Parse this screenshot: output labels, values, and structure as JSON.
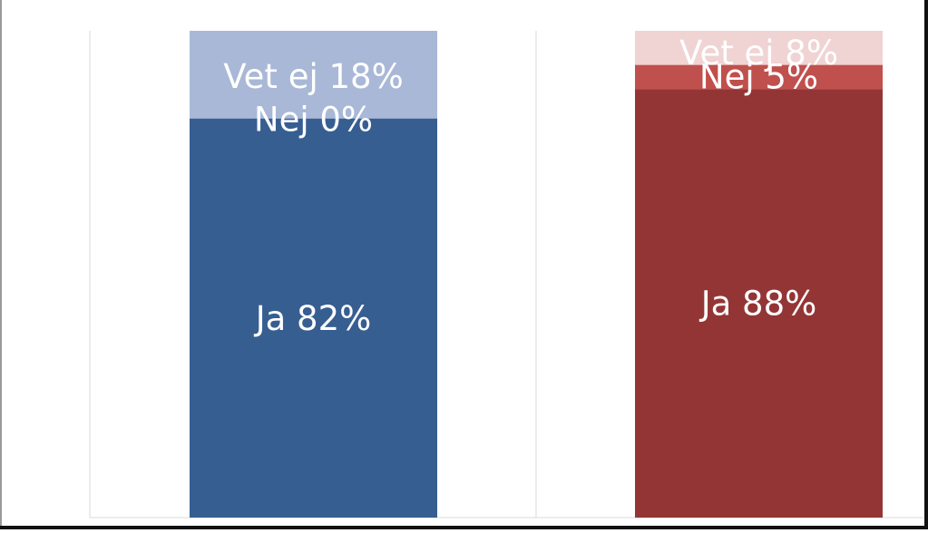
{
  "chart_data": {
    "type": "bar",
    "stacked": true,
    "percent": true,
    "ylim": [
      0,
      100
    ],
    "grid": "vertical",
    "legend": "none",
    "categories": [
      "",
      ""
    ],
    "bars": [
      {
        "segments": [
          {
            "name": "Ja",
            "value": 82,
            "label": "Ja 82%",
            "color": "#375e91"
          },
          {
            "name": "Nej",
            "value": 0,
            "label": "Nej 0%",
            "color": "#2b4f80"
          },
          {
            "name": "Vet ej",
            "value": 18,
            "label": "Vet ej 18%",
            "color": "#a9b8d6"
          }
        ]
      },
      {
        "segments": [
          {
            "name": "Ja",
            "value": 88,
            "label": "Ja 88%",
            "color": "#943535"
          },
          {
            "name": "Nej",
            "value": 5,
            "label": "Nej 5%",
            "color": "#c0504d"
          },
          {
            "name": "Vet ej",
            "value": 8,
            "label": "Vet ej 8%",
            "color": "#f0d3d3"
          }
        ]
      }
    ]
  }
}
